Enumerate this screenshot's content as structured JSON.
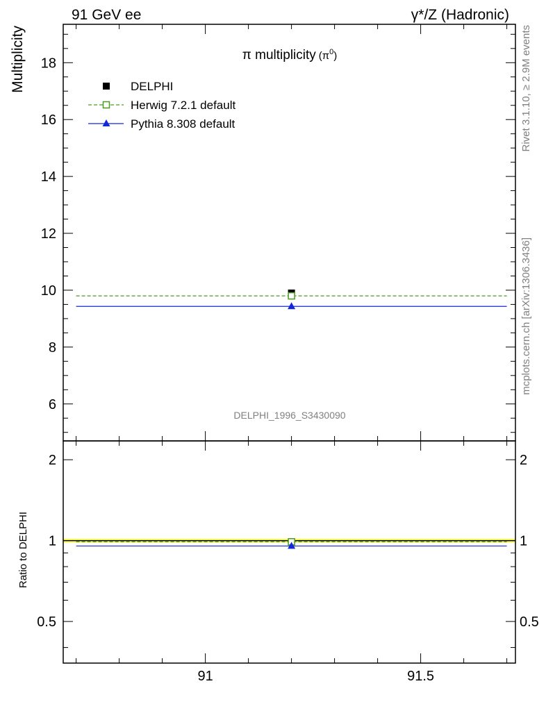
{
  "header": {
    "left": "91 GeV ee",
    "right": "γ*/Z (Hadronic)"
  },
  "side_labels": {
    "rivet": "Rivet 3.1.10, ≥ 2.9M events",
    "mcplots": "mcplots.cern.ch [arXiv:1306.3436]"
  },
  "watermark": "DELPHI_1996_S3430090",
  "chart_data": [
    {
      "type": "scatter",
      "title": "π multiplicity",
      "title_suffix": "(π",
      "title_sup": "0",
      "title_close": ")",
      "ylabel": "Multiplicity",
      "xlim": [
        90.67,
        91.72
      ],
      "ylim": [
        4.7,
        19.35
      ],
      "yticks": [
        6,
        8,
        10,
        12,
        14,
        16,
        18
      ],
      "ytick_labels": [
        "6",
        "8",
        "10",
        "12",
        "14",
        "16",
        "18"
      ],
      "legend_position": "top-left",
      "series": [
        {
          "name": "DELPHI",
          "kind": "data",
          "color": "#000000",
          "marker": "square-filled",
          "points": [
            {
              "x": 91.2,
              "y": 9.9
            }
          ]
        },
        {
          "name": "Herwig 7.2.1 default",
          "kind": "mc",
          "color": "#4a9a1f",
          "marker": "square-open",
          "dashed": true,
          "x_range": [
            90.7,
            91.7
          ],
          "points": [
            {
              "x": 91.2,
              "y": 9.8
            }
          ]
        },
        {
          "name": "Pythia 8.308 default",
          "kind": "mc",
          "color": "#1428d8",
          "marker": "triangle",
          "x_range": [
            90.7,
            91.7
          ],
          "points": [
            {
              "x": 91.2,
              "y": 9.43
            }
          ]
        }
      ]
    },
    {
      "type": "scatter",
      "ylabel": "Ratio to DELPHI",
      "ylim": [
        0.35,
        2.35
      ],
      "yticks": [
        0.5,
        1,
        2
      ],
      "ytick_labels": [
        "0.5",
        "1",
        "2"
      ],
      "xlim": [
        90.67,
        91.72
      ],
      "xticks": [
        91,
        91.5
      ],
      "xtick_labels": [
        "91",
        "91.5"
      ],
      "reference_band": {
        "center": 1.0,
        "color": "#ffff66"
      },
      "series": [
        {
          "name": "Herwig 7.2.1 default",
          "color": "#4a9a1f",
          "marker": "square-open",
          "dashed": true,
          "x_range": [
            90.7,
            91.7
          ],
          "points": [
            {
              "x": 91.2,
              "y": 0.99
            }
          ]
        },
        {
          "name": "Pythia 8.308 default",
          "color": "#1428d8",
          "marker": "triangle",
          "x_range": [
            90.7,
            91.7
          ],
          "points": [
            {
              "x": 91.2,
              "y": 0.955
            }
          ]
        }
      ]
    }
  ]
}
